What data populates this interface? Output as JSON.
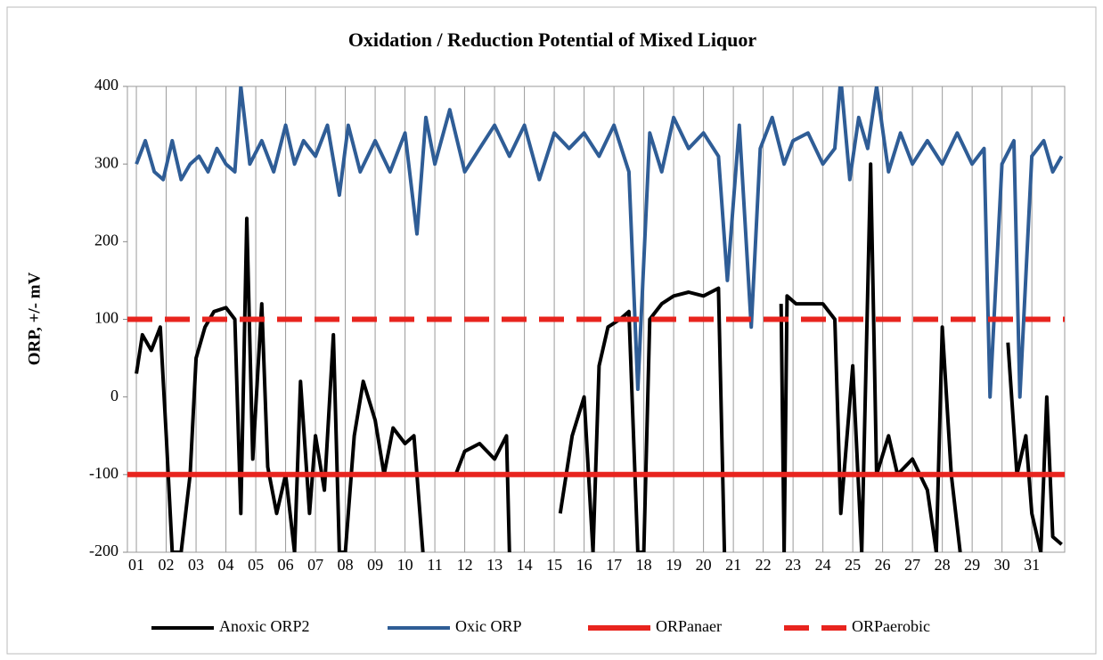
{
  "chart_data": {
    "type": "line",
    "title": "Oxidation  /  Reduction  Potential  of  Mixed Liquor",
    "y_label": "ORP, +/- mV",
    "xlim": [
      0.7,
      32.1
    ],
    "ylim": [
      -200,
      400
    ],
    "yticks": [
      400,
      300,
      200,
      100,
      0,
      -100,
      -200
    ],
    "xticks": [
      {
        "value": 1,
        "label": "01"
      },
      {
        "value": 2,
        "label": "02"
      },
      {
        "value": 3,
        "label": "03"
      },
      {
        "value": 4,
        "label": "04"
      },
      {
        "value": 5,
        "label": "05"
      },
      {
        "value": 6,
        "label": "06"
      },
      {
        "value": 7,
        "label": "07"
      },
      {
        "value": 8,
        "label": "08"
      },
      {
        "value": 9,
        "label": "09"
      },
      {
        "value": 10,
        "label": "10"
      },
      {
        "value": 11,
        "label": "11"
      },
      {
        "value": 12,
        "label": "12"
      },
      {
        "value": 13,
        "label": "13"
      },
      {
        "value": 14,
        "label": "14"
      },
      {
        "value": 15,
        "label": "15"
      },
      {
        "value": 16,
        "label": "16"
      },
      {
        "value": 17,
        "label": "17"
      },
      {
        "value": 18,
        "label": "18"
      },
      {
        "value": 19,
        "label": "19"
      },
      {
        "value": 20,
        "label": "20"
      },
      {
        "value": 21,
        "label": "21"
      },
      {
        "value": 22,
        "label": "22"
      },
      {
        "value": 23,
        "label": "23"
      },
      {
        "value": 24,
        "label": "24"
      },
      {
        "value": 25,
        "label": "25"
      },
      {
        "value": 26,
        "label": "26"
      },
      {
        "value": 27,
        "label": "27"
      },
      {
        "value": 28,
        "label": "28"
      },
      {
        "value": 29,
        "label": "29"
      },
      {
        "value": 30,
        "label": "30"
      },
      {
        "value": 31,
        "label": "31"
      }
    ],
    "grid": "x",
    "legend": "bottom",
    "series": [
      {
        "name": "Anoxic ORP2",
        "color": "#000000",
        "dash": false,
        "width": 4,
        "x": [
          1.0,
          1.2,
          1.5,
          1.8,
          2.0,
          2.2,
          2.5,
          2.8,
          3.0,
          3.3,
          3.6,
          4.0,
          4.3,
          4.5,
          4.7,
          4.9,
          5.2,
          5.4,
          5.7,
          6.0,
          6.3,
          6.5,
          6.8,
          7.0,
          7.3,
          7.6,
          7.8,
          8.0,
          8.3,
          8.6,
          9.0,
          9.3,
          9.6,
          10.0,
          10.3,
          10.6,
          10.9,
          11.7,
          12.0,
          12.5,
          13.0,
          13.4,
          13.5,
          14.5,
          15.2,
          15.6,
          16.0,
          16.3,
          16.5,
          16.8,
          17.2,
          17.5,
          17.8,
          18.0,
          18.2,
          18.6,
          19.0,
          19.5,
          20.0,
          20.5,
          20.7,
          21.5,
          22.6,
          22.7,
          22.8,
          23.1,
          23.5,
          24.0,
          24.4,
          24.6,
          25.0,
          25.3,
          25.6,
          25.8,
          26.2,
          26.5,
          27.0,
          27.5,
          27.8,
          28.0,
          28.3,
          28.6,
          29.2,
          30.2,
          30.5,
          30.8,
          31.0,
          31.3,
          31.5,
          31.7,
          32.0
        ],
        "values": [
          30,
          80,
          60,
          90,
          -50,
          -200,
          -200,
          -100,
          50,
          90,
          110,
          115,
          100,
          -150,
          230,
          -80,
          120,
          -90,
          -150,
          -100,
          -200,
          20,
          -150,
          -50,
          -120,
          80,
          -200,
          -200,
          -50,
          20,
          -30,
          -100,
          -40,
          -60,
          -50,
          -200,
          null,
          -100,
          -70,
          -60,
          -80,
          -50,
          -200,
          null,
          -150,
          -50,
          0,
          -200,
          40,
          90,
          100,
          110,
          -200,
          -200,
          100,
          120,
          130,
          135,
          130,
          140,
          -200,
          null,
          120,
          -200,
          130,
          120,
          120,
          120,
          100,
          -150,
          40,
          -200,
          300,
          -100,
          -50,
          -100,
          -80,
          -120,
          -200,
          90,
          -100,
          -200,
          null,
          70,
          -100,
          -50,
          -150,
          -200,
          0,
          -180,
          -190
        ]
      },
      {
        "name": "Oxic ORP",
        "color": "#2f5d96",
        "dash": false,
        "width": 4,
        "x": [
          1.0,
          1.3,
          1.6,
          1.9,
          2.2,
          2.5,
          2.8,
          3.1,
          3.4,
          3.7,
          4.0,
          4.3,
          4.5,
          4.8,
          5.2,
          5.6,
          6.0,
          6.3,
          6.6,
          7.0,
          7.4,
          7.8,
          8.1,
          8.5,
          9.0,
          9.5,
          10.0,
          10.4,
          10.7,
          11.0,
          11.5,
          12.0,
          12.5,
          13.0,
          13.5,
          14.0,
          14.5,
          15.0,
          15.5,
          16.0,
          16.5,
          17.0,
          17.5,
          17.8,
          18.2,
          18.6,
          19.0,
          19.5,
          20.0,
          20.5,
          20.8,
          21.2,
          21.6,
          21.9,
          22.3,
          22.7,
          23.0,
          23.5,
          24.0,
          24.4,
          24.6,
          24.9,
          25.2,
          25.5,
          25.8,
          26.2,
          26.6,
          27.0,
          27.5,
          28.0,
          28.5,
          29.0,
          29.4,
          29.6,
          30.0,
          30.4,
          30.6,
          31.0,
          31.4,
          31.7,
          32.0
        ],
        "values": [
          300,
          330,
          290,
          280,
          330,
          280,
          300,
          310,
          290,
          320,
          300,
          290,
          400,
          300,
          330,
          290,
          350,
          300,
          330,
          310,
          350,
          260,
          350,
          290,
          330,
          290,
          340,
          210,
          360,
          300,
          370,
          290,
          320,
          350,
          310,
          350,
          280,
          340,
          320,
          340,
          310,
          350,
          290,
          10,
          340,
          290,
          360,
          320,
          340,
          310,
          150,
          350,
          90,
          320,
          360,
          300,
          330,
          340,
          300,
          320,
          410,
          280,
          360,
          320,
          400,
          290,
          340,
          300,
          330,
          300,
          340,
          300,
          320,
          0,
          300,
          330,
          0,
          310,
          330,
          290,
          310
        ]
      },
      {
        "name": "ORPanaer",
        "color": "#e8241e",
        "dash": false,
        "width": 6,
        "x": [
          0.7,
          32.1
        ],
        "values": [
          -100,
          -100
        ]
      },
      {
        "name": "ORPaerobic",
        "color": "#e8241e",
        "dash": true,
        "width": 6,
        "x": [
          0.7,
          32.1
        ],
        "values": [
          100,
          100
        ]
      }
    ]
  }
}
